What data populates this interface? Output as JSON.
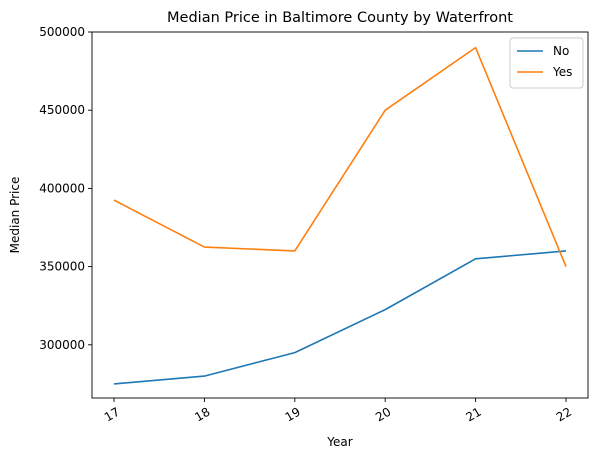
{
  "chart_data": {
    "type": "line",
    "title": "Median Price in Baltimore County by Waterfront",
    "xlabel": "Year",
    "ylabel": "Median Price",
    "categories": [
      "17",
      "18",
      "19",
      "20",
      "21",
      "22"
    ],
    "yticks": [
      300000,
      350000,
      400000,
      450000,
      500000
    ],
    "ylim": [
      266000,
      500000
    ],
    "grid": false,
    "legend_position": "top-right",
    "series": [
      {
        "name": "No",
        "color": "#1f77b4",
        "values": [
          275000,
          280000,
          295000,
          322500,
          355000,
          360000
        ]
      },
      {
        "name": "Yes",
        "color": "#ff7f0e",
        "values": [
          392500,
          362500,
          360000,
          450000,
          490000,
          350000
        ]
      }
    ]
  }
}
